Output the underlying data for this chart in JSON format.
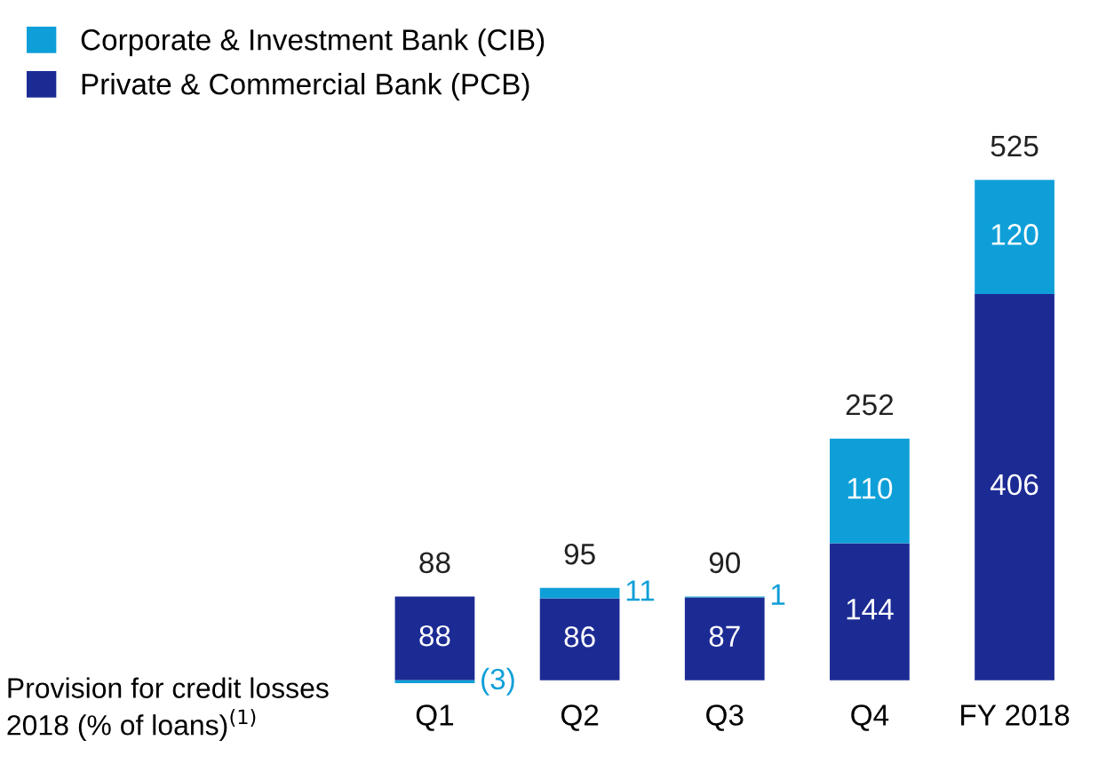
{
  "chart_data": {
    "type": "bar",
    "stacked": true,
    "categories": [
      "Q1",
      "Q2",
      "Q3",
      "Q4",
      "FY 2018"
    ],
    "series": [
      {
        "name": "Private & Commercial Bank (PCB)",
        "color": "#1c2b94",
        "values": [
          88,
          86,
          87,
          144,
          406
        ],
        "value_labels": [
          "88",
          "86",
          "87",
          "144",
          "406"
        ]
      },
      {
        "name": "Corporate & Investment Bank (CIB)",
        "color": "#0f9fd8",
        "values": [
          -3,
          11,
          1,
          110,
          120
        ],
        "value_labels": [
          "(3)",
          "11",
          "1",
          "110",
          "120"
        ]
      }
    ],
    "annotations": [
      "Provision for credit losses 2018 (% of loans)$^{(1)}$",
      {
        "text": "88",
        "x": "Q1",
        "y": 88
      },
      {
        "text": "95",
        "x": "Q2",
        "y": 97
      },
      {
        "text": "90",
        "x": "Q3",
        "y": 88
      },
      {
        "text": "252",
        "x": "Q4",
        "y": 254
      },
      {
        "text": "525",
        "x": "FY 2018",
        "y": 526
      }
    ],
    "legend": "top left",
    "grid": false
  }
}
